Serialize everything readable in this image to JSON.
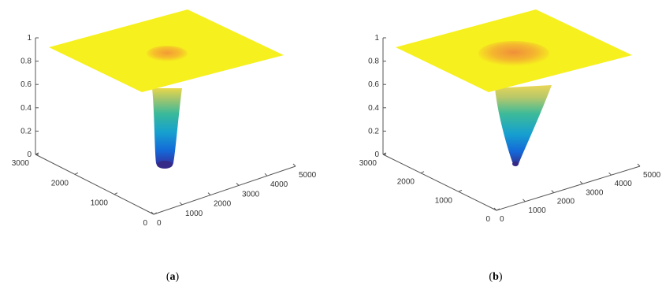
{
  "chart_data": [
    {
      "type": "surface",
      "panel_label": "a",
      "x_ticks": [
        "0",
        "1000",
        "2000",
        "3000",
        "4000",
        "5000"
      ],
      "y_ticks": [
        "0",
        "1000",
        "2000",
        "3000"
      ],
      "z_ticks": [
        "0",
        "0.2",
        "0.4",
        "0.6",
        "0.8",
        "1"
      ],
      "xlim": [
        0,
        5000
      ],
      "ylim": [
        0,
        3000
      ],
      "zlim": [
        0,
        1
      ],
      "plateau_value": 1,
      "well_minimum": 0.02,
      "well_shape": "narrow deep well with flat bottom",
      "colormap": "parula",
      "grid": false
    },
    {
      "type": "surface",
      "panel_label": "b",
      "x_ticks": [
        "0",
        "1000",
        "2000",
        "3000",
        "4000",
        "5000"
      ],
      "y_ticks": [
        "0",
        "1000",
        "2000",
        "3000"
      ],
      "z_ticks": [
        "0",
        "0.2",
        "0.4",
        "0.6",
        "0.8",
        "1"
      ],
      "xlim": [
        0,
        5000
      ],
      "ylim": [
        0,
        3000
      ],
      "zlim": [
        0,
        1
      ],
      "plateau_value": 1,
      "well_minimum": 0.02,
      "well_shape": "wider cone-shaped well",
      "colormap": "parula",
      "grid": false
    }
  ],
  "colors": {
    "plateau": "#f6f01e",
    "axis": "#555555",
    "parula": [
      "#352a87",
      "#0d63e0",
      "#1a9fce",
      "#35b8a3",
      "#7ec87b",
      "#d0ba52",
      "#f4e61d"
    ]
  }
}
